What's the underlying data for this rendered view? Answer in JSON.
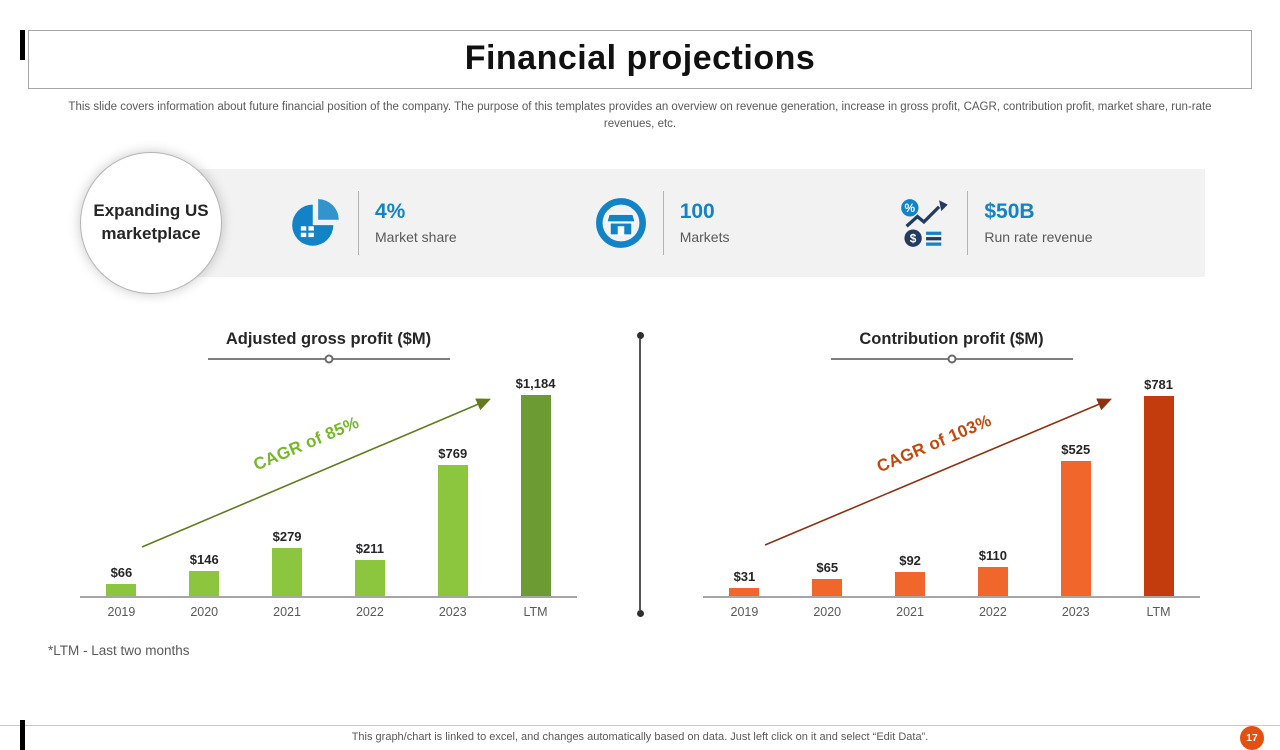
{
  "slide": {
    "title": "Financial projections",
    "description": "This slide covers information about future financial position of the company. The purpose of this templates provides an overview on revenue generation, increase in gross profit, CAGR, contribution profit, market share, run-rate revenues, etc.",
    "badge": "Expanding US marketplace",
    "footnote": "*LTM - Last two months",
    "footer": "This graph/chart is linked to excel, and changes automatically based on data. Just left click on it and select “Edit Data”.",
    "page_number": "17"
  },
  "colors": {
    "accent_blue": "#1283c6",
    "page_badge": "#e4500f"
  },
  "stats": [
    {
      "icon": "pie-chart-icon",
      "value": "4%",
      "label": "Market share"
    },
    {
      "icon": "marketplace-store-icon",
      "value": "100",
      "label": "Markets"
    },
    {
      "icon": "revenue-growth-icon",
      "value": "$50B",
      "label": "Run rate revenue"
    }
  ],
  "chart_data": [
    {
      "type": "bar",
      "title": "Adjusted gross profit ($M)",
      "categories": [
        "2019",
        "2020",
        "2021",
        "2022",
        "2023",
        "LTM"
      ],
      "values": [
        66,
        146,
        279,
        211,
        769,
        1184
      ],
      "labels": [
        "$66",
        "$146",
        "$279",
        "$211",
        "$769",
        "$1,184"
      ],
      "annotation": "CAGR of 85%",
      "bar_color": "#8cc63f",
      "last_bar_color": "#6d9b33",
      "annotation_color": "#76b82a",
      "arrow_color": "#5f7d1e",
      "xlabel": "",
      "ylabel": "",
      "ylim": [
        0,
        1300
      ],
      "grid": false,
      "legend": "none"
    },
    {
      "type": "bar",
      "title": "Contribution profit ($M)",
      "categories": [
        "2019",
        "2020",
        "2021",
        "2022",
        "2023",
        "LTM"
      ],
      "values": [
        31,
        65,
        92,
        110,
        525,
        781
      ],
      "labels": [
        "$31",
        "$65",
        "$92",
        "$110",
        "$525",
        "$781"
      ],
      "annotation": "CAGR of 103%",
      "bar_color": "#f0662b",
      "last_bar_color": "#c23c0d",
      "annotation_color": "#c2490e",
      "arrow_color": "#8c3210",
      "xlabel": "",
      "ylabel": "",
      "ylim": [
        0,
        860
      ],
      "grid": false,
      "legend": "none"
    }
  ]
}
